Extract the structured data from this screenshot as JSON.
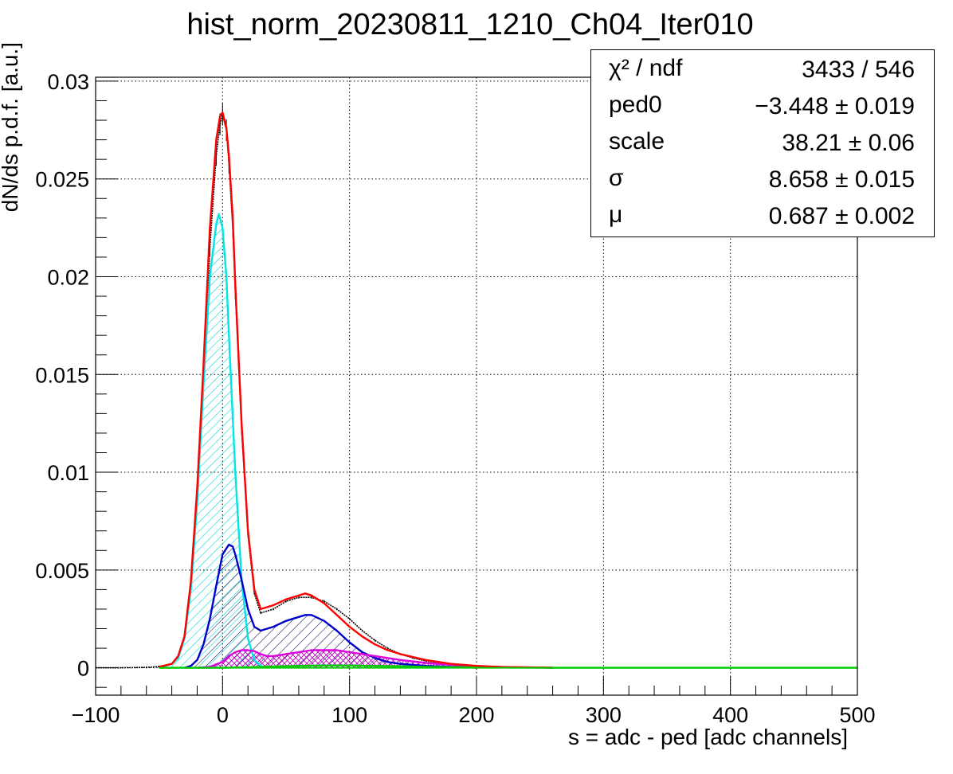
{
  "chart_data": {
    "type": "line",
    "title": "hist_norm_20230811_1210_Ch04_Iter010",
    "xlabel": "s = adc - ped [adc channels]",
    "ylabel": "dN/ds p.d.f. [a.u.]",
    "xlim": [
      -100,
      500
    ],
    "ylim": [
      -0.0014,
      0.0302
    ],
    "grid": true,
    "x_ticks": [
      "−100",
      "0",
      "100",
      "200",
      "300",
      "400",
      "500"
    ],
    "y_ticks": [
      "0",
      "0.005",
      "0.01",
      "0.015",
      "0.02",
      "0.025",
      "0.03"
    ],
    "legend_position": "top-right",
    "stats": [
      {
        "key": "χ² / ndf",
        "value": "3433 / 546"
      },
      {
        "key": "ped0",
        "value": "−3.448 ± 0.019"
      },
      {
        "key": "scale",
        "value": "38.21 ± 0.06"
      },
      {
        "key": "σ",
        "value": "8.658 ± 0.015"
      },
      {
        "key": "μ",
        "value": "0.687 ± 0.002"
      }
    ],
    "series": [
      {
        "color": "#000000",
        "x": [
          -100,
          -80,
          -60,
          -50,
          -40,
          -35,
          -30,
          -25,
          -20,
          -15,
          -10,
          -5,
          -2,
          0,
          3,
          5,
          8,
          10,
          15,
          20,
          25,
          30,
          40,
          50,
          60,
          70,
          80,
          90,
          100,
          110,
          120,
          130,
          140,
          150,
          160,
          180,
          200,
          220,
          240,
          260
        ],
        "y": [
          0.0,
          0.0,
          2e-05,
          6e-05,
          0.0002,
          0.0006,
          0.0016,
          0.0042,
          0.0085,
          0.0145,
          0.0215,
          0.0262,
          0.0278,
          0.0283,
          0.0275,
          0.0258,
          0.0225,
          0.0192,
          0.0122,
          0.0068,
          0.0038,
          0.0028,
          0.003,
          0.0034,
          0.0036,
          0.0036,
          0.0034,
          0.003,
          0.0025,
          0.0019,
          0.0014,
          0.001,
          0.0007,
          0.0005,
          0.00035,
          0.00018,
          8e-05,
          4e-05,
          2e-05,
          0.0
        ]
      },
      {
        "color": "#ff0000",
        "x": [
          -50,
          -40,
          -35,
          -30,
          -25,
          -20,
          -15,
          -10,
          -5,
          -2,
          0,
          3,
          5,
          8,
          10,
          15,
          20,
          25,
          30,
          40,
          50,
          60,
          65,
          70,
          80,
          90,
          100,
          110,
          120,
          130,
          140,
          160,
          180,
          200,
          220,
          240,
          260
        ],
        "y": [
          5e-05,
          0.0002,
          0.0006,
          0.0016,
          0.0044,
          0.0092,
          0.0155,
          0.0225,
          0.027,
          0.0282,
          0.0284,
          0.0276,
          0.0262,
          0.023,
          0.0196,
          0.0125,
          0.007,
          0.004,
          0.003,
          0.0032,
          0.0035,
          0.0037,
          0.0038,
          0.0037,
          0.0033,
          0.0027,
          0.0021,
          0.0016,
          0.0012,
          0.0009,
          0.0007,
          0.0004,
          0.0002,
          0.0001,
          4e-05,
          2e-05,
          1e-05
        ]
      },
      {
        "color": "#00e5e5",
        "fill": "hatch-cyan",
        "x": [
          -50,
          -40,
          -35,
          -30,
          -25,
          -20,
          -15,
          -10,
          -5,
          -3,
          0,
          3,
          5,
          10,
          15,
          20,
          25,
          30,
          35
        ],
        "y": [
          0.0,
          0.0002,
          0.0005,
          0.0015,
          0.004,
          0.0085,
          0.0145,
          0.02,
          0.0227,
          0.0232,
          0.0225,
          0.02,
          0.017,
          0.01,
          0.0045,
          0.0015,
          0.0004,
          0.0001,
          0.0
        ]
      },
      {
        "color": "#0000cc",
        "fill": "hatch-blue",
        "x": [
          -30,
          -25,
          -20,
          -15,
          -10,
          -5,
          0,
          5,
          8,
          10,
          15,
          20,
          25,
          30,
          40,
          50,
          60,
          65,
          70,
          80,
          90,
          100,
          110,
          120,
          130,
          140,
          160,
          180,
          200
        ],
        "y": [
          0.0,
          0.0001,
          0.0004,
          0.0012,
          0.0025,
          0.0042,
          0.0058,
          0.0063,
          0.0062,
          0.0058,
          0.0045,
          0.003,
          0.0021,
          0.0019,
          0.0021,
          0.0024,
          0.0026,
          0.0027,
          0.0027,
          0.0024,
          0.0019,
          0.0013,
          0.0008,
          0.0005,
          0.0003,
          0.0002,
          0.0001,
          5e-05,
          0.0
        ]
      },
      {
        "color": "#dd00dd",
        "fill": "hatch-magenta",
        "x": [
          -20,
          -10,
          0,
          5,
          10,
          15,
          20,
          25,
          30,
          35,
          40,
          50,
          60,
          70,
          80,
          90,
          100,
          110,
          120,
          130,
          140,
          160,
          180,
          200,
          220,
          240,
          260
        ],
        "y": [
          0.0,
          5e-05,
          0.0003,
          0.0006,
          0.0008,
          0.0009,
          0.0009,
          0.00085,
          0.0007,
          0.0006,
          0.0006,
          0.0007,
          0.0008,
          0.0009,
          0.0009,
          0.0009,
          0.0008,
          0.0007,
          0.0006,
          0.0005,
          0.0004,
          0.00025,
          0.00015,
          8e-05,
          4e-05,
          2e-05,
          0.0
        ]
      },
      {
        "color": "#00cc00",
        "x": [
          -50,
          0,
          20,
          40,
          60,
          80,
          100,
          120,
          140,
          160,
          200,
          260,
          300,
          400,
          500
        ],
        "y": [
          0.0,
          0.0,
          3e-05,
          7e-05,
          0.0001,
          0.00012,
          0.00012,
          0.0001,
          8e-05,
          5e-05,
          2e-05,
          0.0,
          0.0,
          0.0,
          0.0
        ]
      }
    ]
  }
}
